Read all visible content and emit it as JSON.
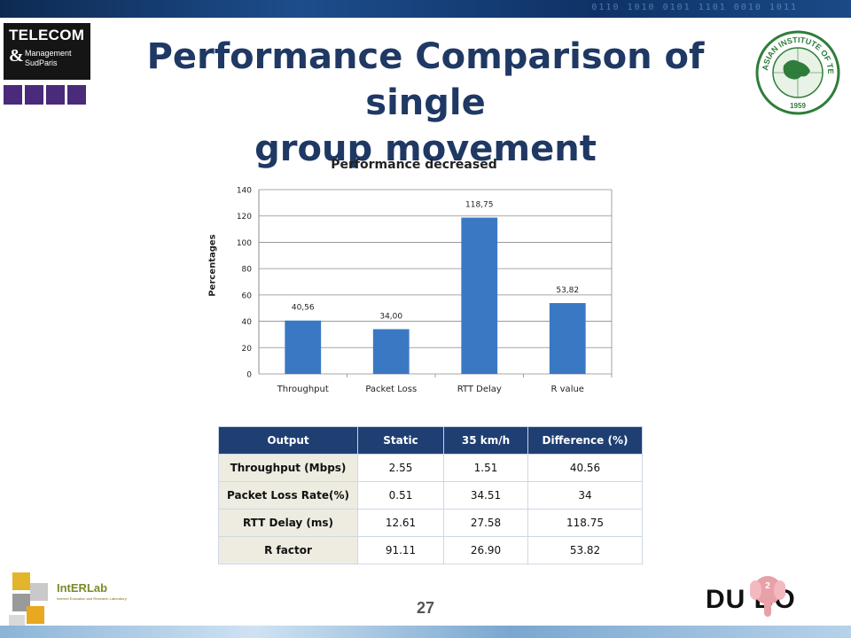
{
  "slide": {
    "title_line1": "Performance Comparison of single",
    "title_line2": "group movement",
    "page_number": "27"
  },
  "logos": {
    "telecom_title": "TELECOM",
    "telecom_amp": "&",
    "telecom_sub1": "Management",
    "telecom_sub2": "SudParis",
    "ait_text": "ASIAN INSTITUTE OF TECHNOLOGY",
    "ait_year": "1959",
    "intelab_name": "IntERLab",
    "intelab_sub": "Internet Education and Research Laboratory",
    "dumbo_text": "DU  BO"
  },
  "chart_data": {
    "type": "bar",
    "title": "Performance decreased",
    "ylabel": "Percentages",
    "xlabel": "",
    "categories": [
      "Throughput",
      "Packet Loss",
      "RTT Delay",
      "R value"
    ],
    "values": [
      40.56,
      34.0,
      118.75,
      53.82
    ],
    "data_labels": [
      "40,56",
      "34,00",
      "118,75",
      "53,82"
    ],
    "ylim": [
      0,
      140
    ],
    "yticks": [
      0,
      20,
      40,
      60,
      80,
      100,
      120,
      140
    ],
    "grid": true,
    "bar_color": "#3b78c4"
  },
  "table": {
    "headers": [
      "Output",
      "Static",
      "35 km/h",
      "Difference (%)"
    ],
    "rows": [
      [
        "Throughput  (Mbps)",
        "2.55",
        "1.51",
        "40.56"
      ],
      [
        "Packet Loss Rate(%)",
        "0.51",
        "34.51",
        "34"
      ],
      [
        "RTT Delay (ms)",
        "12.61",
        "27.58",
        "118.75"
      ],
      [
        "R factor",
        "91.11",
        "26.90",
        "53.82"
      ]
    ]
  },
  "colors": {
    "title": "#1f3864",
    "table_header": "#1f3f73",
    "row_header_bg": "#eeece1"
  }
}
